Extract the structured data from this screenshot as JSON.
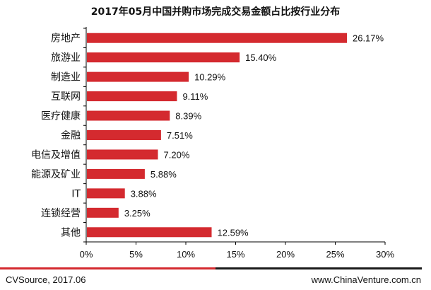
{
  "chart_data": {
    "type": "bar",
    "orientation": "horizontal",
    "title": "2017年05月中国并购市场完成交易金额占比按行业分布",
    "categories": [
      "房地产",
      "旅游业",
      "制造业",
      "互联网",
      "医疗健康",
      "金融",
      "电信及增值",
      "能源及矿业",
      "IT",
      "连锁经营",
      "其他"
    ],
    "values": [
      26.17,
      15.4,
      10.29,
      9.11,
      8.39,
      7.51,
      7.2,
      5.88,
      3.88,
      3.25,
      12.59
    ],
    "value_labels": [
      "26.17%",
      "15.40%",
      "10.29%",
      "9.11%",
      "8.39%",
      "7.51%",
      "7.20%",
      "5.88%",
      "3.88%",
      "3.25%",
      "12.59%"
    ],
    "xlim": [
      0,
      30
    ],
    "xticks": [
      0,
      5,
      10,
      15,
      20,
      25,
      30
    ],
    "xtick_labels": [
      "0%",
      "5%",
      "10%",
      "15%",
      "20%",
      "25%",
      "30%"
    ],
    "grid": false,
    "bar_color": "#d42a2f"
  },
  "footer": {
    "source": "CVSource, 2017.06",
    "website": "www.ChinaVenture.com.cn"
  }
}
